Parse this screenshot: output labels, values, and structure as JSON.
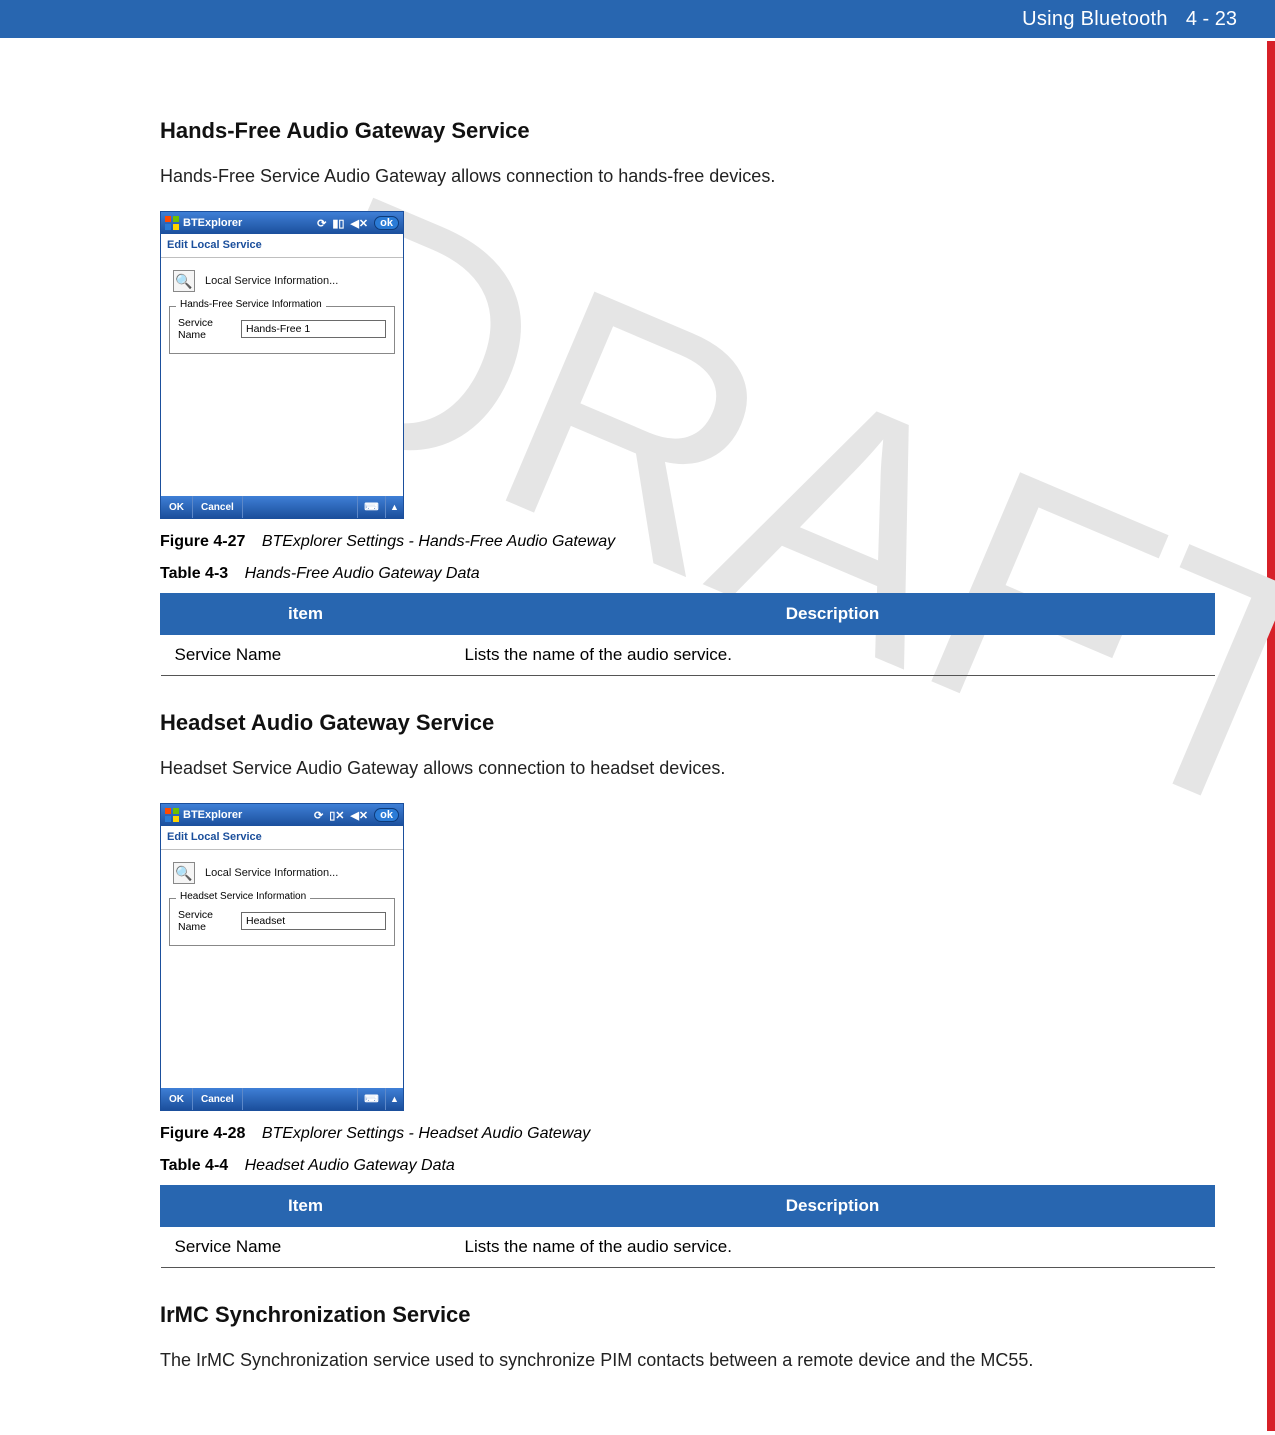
{
  "header": {
    "chapter": "Using Bluetooth",
    "pagenum": "4 - 23"
  },
  "watermark": "DRAFT",
  "colors": {
    "header_bg": "#2866b0",
    "red_edge": "#d72028",
    "watermark": "#e5e5e5",
    "table_header_bg": "#2866b0",
    "table_header_fg": "#ffffff"
  },
  "section1": {
    "title": "Hands-Free Audio Gateway Service",
    "body": "Hands-Free Service Audio Gateway allows connection to hands-free devices.",
    "mobile": {
      "title": "BTExplorer",
      "subheader": "Edit Local Service",
      "info_label": "Local Service Information...",
      "fieldset_legend": "Hands-Free Service Information",
      "field_label": "Service Name",
      "field_value": "Hands-Free 1",
      "ok": "ok",
      "btn_ok": "OK",
      "btn_cancel": "Cancel",
      "signal_variant": "bars"
    },
    "figure": {
      "label": "Figure 4-27",
      "text": "BTExplorer Settings - Hands-Free Audio Gateway"
    },
    "table_caption": {
      "label": "Table 4-3",
      "text": "Hands-Free Audio Gateway Data"
    },
    "table": {
      "columns": [
        "item",
        "Description"
      ],
      "rows": [
        [
          "Service Name",
          "Lists the name of the audio service."
        ]
      ]
    }
  },
  "section2": {
    "title": "Headset Audio Gateway Service",
    "body": "Headset Service Audio Gateway allows connection to headset devices.",
    "mobile": {
      "title": "BTExplorer",
      "subheader": "Edit Local Service",
      "info_label": "Local Service Information...",
      "fieldset_legend": "Headset Service Information",
      "field_label": "Service Name",
      "field_value": "Headset",
      "ok": "ok",
      "btn_ok": "OK",
      "btn_cancel": "Cancel",
      "signal_variant": "nosignal"
    },
    "figure": {
      "label": "Figure 4-28",
      "text": "BTExplorer Settings - Headset Audio Gateway"
    },
    "table_caption": {
      "label": "Table 4-4",
      "text": "Headset Audio Gateway Data"
    },
    "table": {
      "columns": [
        "Item",
        "Description"
      ],
      "rows": [
        [
          "Service Name",
          "Lists the name of the audio service."
        ]
      ]
    }
  },
  "section3": {
    "title": "IrMC Synchronization Service",
    "body": "The IrMC Synchronization service used to synchronize PIM contacts between a remote device and the MC55."
  }
}
